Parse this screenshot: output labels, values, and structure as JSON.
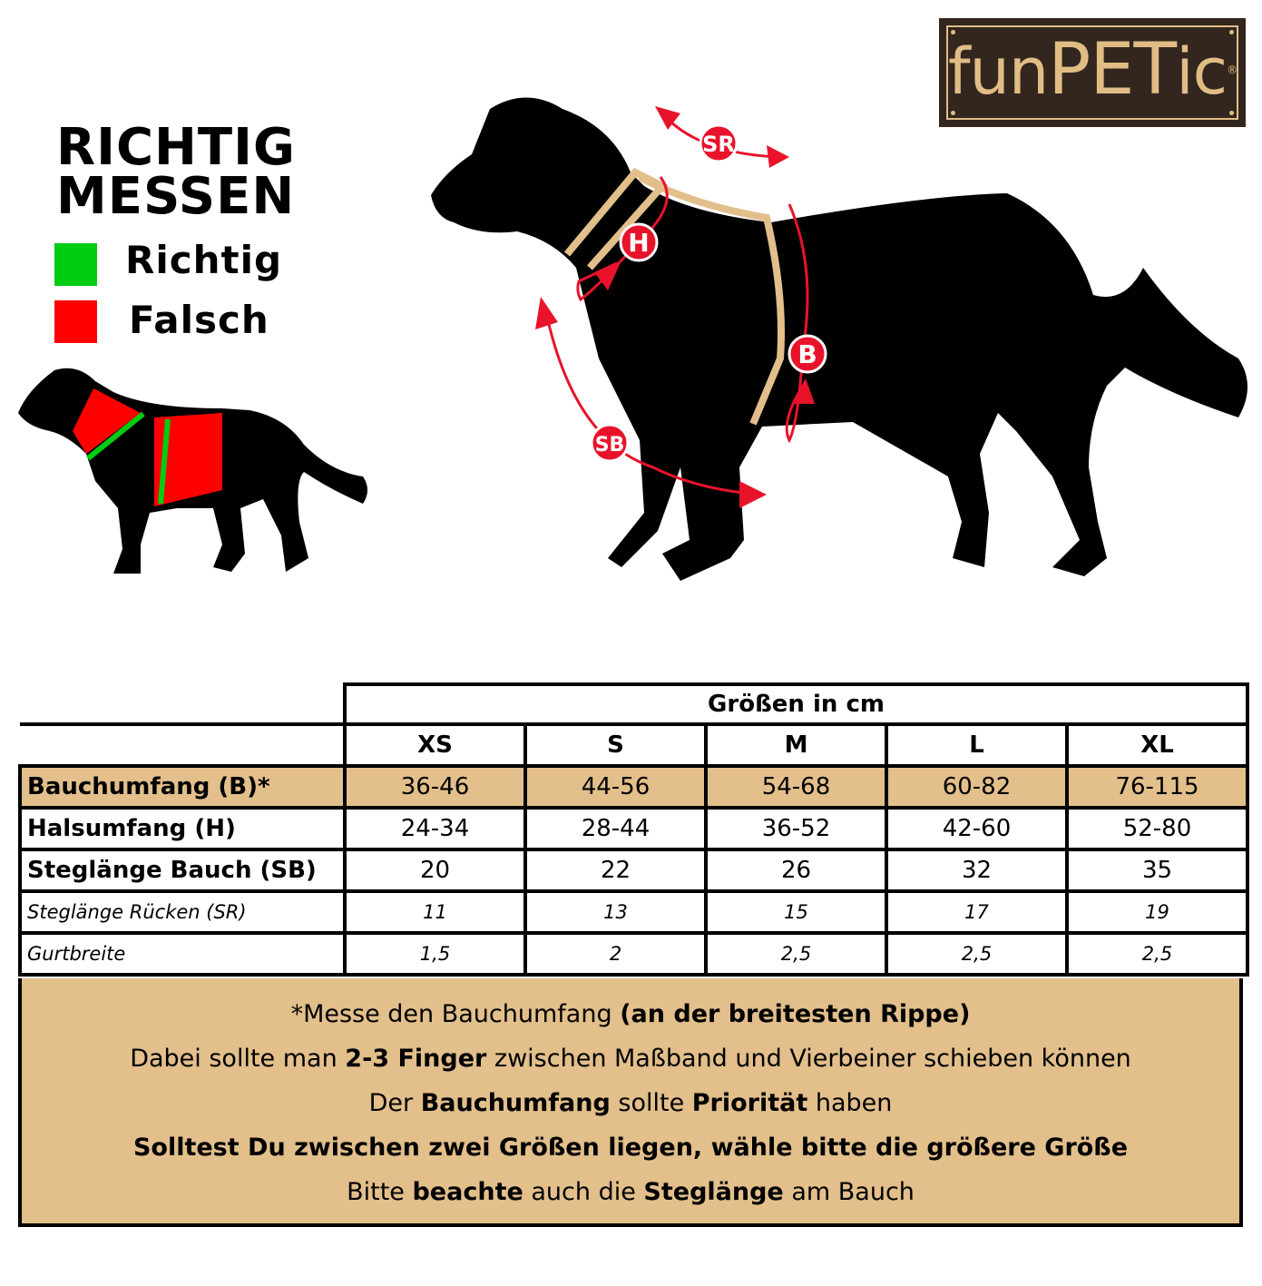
{
  "heading": {
    "line1": "RICHTIG",
    "line2": "MESSEN"
  },
  "legend": [
    {
      "label": "Richtig",
      "color": "#00cc11"
    },
    {
      "label": "Falsch",
      "color": "#ff0000"
    }
  ],
  "logo": {
    "text_a": "fun",
    "text_b": "PET",
    "text_c": "ic",
    "mark": "®"
  },
  "diagram_labels": {
    "sr": "SR",
    "h": "H",
    "b": "B",
    "sb": "SB"
  },
  "colors": {
    "harness": "#e2bf8b",
    "measure": "#e8132a",
    "tan": "#e2bf8b",
    "logo_bg": "#32261e"
  },
  "table": {
    "group_header": "Größen in cm",
    "sizes": [
      "XS",
      "S",
      "M",
      "L",
      "XL"
    ],
    "rows": [
      {
        "label": "Bauchumfang (B)*",
        "values": [
          "36-46",
          "44-56",
          "54-68",
          "60-82",
          "76-115"
        ]
      },
      {
        "label": "Halsumfang (H)",
        "values": [
          "24-34",
          "28-44",
          "36-52",
          "42-60",
          "52-80"
        ]
      },
      {
        "label": "Steglänge Bauch (SB)",
        "values": [
          "20",
          "22",
          "26",
          "32",
          "35"
        ]
      },
      {
        "label": "Steglänge Rücken (SR)",
        "values": [
          "11",
          "13",
          "15",
          "17",
          "19"
        ]
      },
      {
        "label": "Gurtbreite",
        "values": [
          "1,5",
          "2",
          "2,5",
          "2,5",
          "2,5"
        ]
      }
    ]
  },
  "notes": [
    [
      {
        "t": "*Messe den Bauchumfang ",
        "b": false
      },
      {
        "t": "(an der breitesten Rippe)",
        "b": true
      }
    ],
    [
      {
        "t": "Dabei sollte man ",
        "b": false
      },
      {
        "t": "2-3 Finger",
        "b": true
      },
      {
        "t": " zwischen Maßband und Vierbeiner schieben können",
        "b": false
      }
    ],
    [
      {
        "t": "Der ",
        "b": false
      },
      {
        "t": "Bauchumfang",
        "b": true
      },
      {
        "t": " sollte ",
        "b": false
      },
      {
        "t": "Priorität",
        "b": true
      },
      {
        "t": " haben",
        "b": false
      }
    ],
    [
      {
        "t": "Solltest Du zwischen zwei Größen liegen, wähle bitte die größere Größe",
        "b": true
      }
    ],
    [
      {
        "t": "Bitte ",
        "b": false
      },
      {
        "t": "beachte",
        "b": true
      },
      {
        "t": " auch die ",
        "b": false
      },
      {
        "t": "Steglänge",
        "b": true
      },
      {
        "t": " am Bauch",
        "b": false
      }
    ]
  ]
}
